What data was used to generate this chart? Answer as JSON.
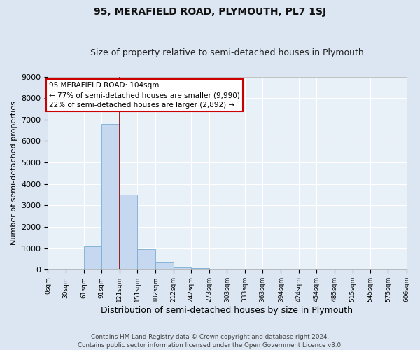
{
  "title": "95, MERAFIELD ROAD, PLYMOUTH, PL7 1SJ",
  "subtitle": "Size of property relative to semi-detached houses in Plymouth",
  "xlabel": "Distribution of semi-detached houses by size in Plymouth",
  "ylabel": "Number of semi-detached properties",
  "bar_color": "#c5d8ef",
  "bar_edge_color": "#7aadd4",
  "property_line_x": 121,
  "annotation_line1": "95 MERAFIELD ROAD: 104sqm",
  "annotation_line2": "← 77% of semi-detached houses are smaller (9,990)",
  "annotation_line3": "22% of semi-detached houses are larger (2,892) →",
  "footer1": "Contains HM Land Registry data © Crown copyright and database right 2024.",
  "footer2": "Contains public sector information licensed under the Open Government Licence v3.0.",
  "bin_edges": [
    0,
    30,
    61,
    91,
    121,
    151,
    182,
    212,
    242,
    273,
    303,
    333,
    363,
    394,
    424,
    454,
    485,
    515,
    545,
    575,
    606
  ],
  "bin_counts": [
    0,
    0,
    1100,
    6800,
    3500,
    960,
    340,
    120,
    70,
    30,
    0,
    0,
    0,
    0,
    0,
    0,
    0,
    0,
    0,
    0
  ],
  "ylim": [
    0,
    9000
  ],
  "yticks": [
    0,
    1000,
    2000,
    3000,
    4000,
    5000,
    6000,
    7000,
    8000,
    9000
  ],
  "fig_bg_color": "#dce6f2",
  "ax_bg_color": "#e8f0f8",
  "grid_color": "#ffffff",
  "tick_labels": [
    "0sqm",
    "30sqm",
    "61sqm",
    "91sqm",
    "121sqm",
    "151sqm",
    "182sqm",
    "212sqm",
    "242sqm",
    "273sqm",
    "303sqm",
    "333sqm",
    "363sqm",
    "394sqm",
    "424sqm",
    "454sqm",
    "485sqm",
    "515sqm",
    "545sqm",
    "575sqm",
    "606sqm"
  ]
}
